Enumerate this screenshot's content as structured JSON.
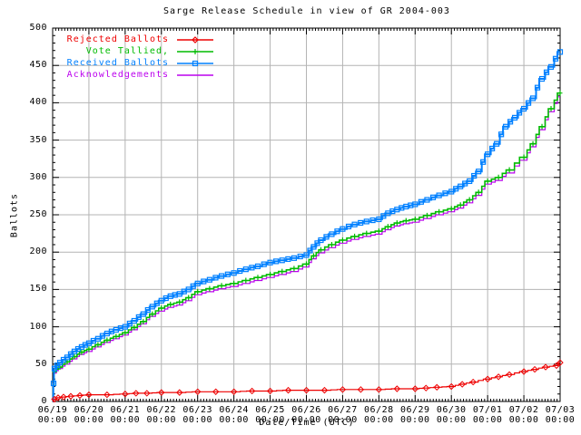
{
  "chart_data": {
    "type": "line",
    "title": "Sarge Release Schedule in view of GR 2004-003",
    "xlabel": "Date/Time (UTC)",
    "ylabel": "Ballots",
    "ylim": [
      0,
      500
    ],
    "y_tick_step": 50,
    "y_ticks": [
      0,
      50,
      100,
      150,
      200,
      250,
      300,
      350,
      400,
      450,
      500
    ],
    "x_tick_dates": [
      "06/19",
      "06/20",
      "06/21",
      "06/22",
      "06/23",
      "06/24",
      "06/25",
      "06/26",
      "06/27",
      "06/28",
      "06/29",
      "06/30",
      "07/01",
      "07/02",
      "07/03"
    ],
    "x_tick_time": "00:00",
    "grid": true,
    "legend_position": "top-left",
    "axis_color": "#000000",
    "grid_color": "#b4b4b4",
    "series": [
      {
        "name": "Rejected Ballots",
        "color": "#ee0000",
        "marker": "diamond",
        "points": [
          [
            0,
            0
          ],
          [
            0.05,
            3
          ],
          [
            0.15,
            5
          ],
          [
            0.3,
            6
          ],
          [
            0.5,
            7
          ],
          [
            0.75,
            8
          ],
          [
            1,
            9
          ],
          [
            1.5,
            9
          ],
          [
            2,
            10
          ],
          [
            2.3,
            11
          ],
          [
            2.6,
            11
          ],
          [
            3,
            12
          ],
          [
            3.5,
            12
          ],
          [
            4,
            13
          ],
          [
            4.5,
            13
          ],
          [
            5,
            13
          ],
          [
            5.5,
            14
          ],
          [
            6,
            14
          ],
          [
            6.5,
            15
          ],
          [
            7,
            15
          ],
          [
            7.5,
            15
          ],
          [
            8,
            16
          ],
          [
            8.5,
            16
          ],
          [
            9,
            16
          ],
          [
            9.5,
            17
          ],
          [
            10,
            17
          ],
          [
            10.3,
            18
          ],
          [
            10.6,
            19
          ],
          [
            11,
            20
          ],
          [
            11.3,
            23
          ],
          [
            11.6,
            26
          ],
          [
            12,
            30
          ],
          [
            12.3,
            33
          ],
          [
            12.6,
            36
          ],
          [
            13,
            40
          ],
          [
            13.3,
            43
          ],
          [
            13.6,
            46
          ],
          [
            13.9,
            48
          ],
          [
            14,
            52
          ]
        ]
      },
      {
        "name": "Vote Tallied,",
        "color": "#00bb00",
        "marker": "plus",
        "points": [
          [
            0,
            0
          ],
          [
            0.05,
            40
          ],
          [
            0.2,
            46
          ],
          [
            0.4,
            53
          ],
          [
            0.6,
            60
          ],
          [
            0.8,
            66
          ],
          [
            1,
            70
          ],
          [
            1.25,
            76
          ],
          [
            1.5,
            82
          ],
          [
            1.75,
            87
          ],
          [
            2,
            92
          ],
          [
            2.25,
            99
          ],
          [
            2.5,
            107
          ],
          [
            2.75,
            117
          ],
          [
            3,
            125
          ],
          [
            3.25,
            130
          ],
          [
            3.5,
            133
          ],
          [
            3.75,
            139
          ],
          [
            4,
            147
          ],
          [
            4.33,
            151
          ],
          [
            4.66,
            155
          ],
          [
            5,
            158
          ],
          [
            5.33,
            162
          ],
          [
            5.66,
            166
          ],
          [
            6,
            170
          ],
          [
            6.33,
            174
          ],
          [
            6.66,
            178
          ],
          [
            7,
            184
          ],
          [
            7.2,
            195
          ],
          [
            7.4,
            203
          ],
          [
            7.7,
            210
          ],
          [
            8,
            216
          ],
          [
            8.33,
            221
          ],
          [
            8.66,
            225
          ],
          [
            9,
            228
          ],
          [
            9.25,
            234
          ],
          [
            9.5,
            239
          ],
          [
            9.75,
            242
          ],
          [
            10,
            244
          ],
          [
            10.33,
            249
          ],
          [
            10.66,
            254
          ],
          [
            11,
            258
          ],
          [
            11.25,
            263
          ],
          [
            11.5,
            270
          ],
          [
            11.75,
            280
          ],
          [
            12,
            295
          ],
          [
            12.3,
            300
          ],
          [
            12.6,
            310
          ],
          [
            13,
            327
          ],
          [
            13.25,
            345
          ],
          [
            13.5,
            368
          ],
          [
            13.75,
            392
          ],
          [
            14,
            413
          ]
        ]
      },
      {
        "name": "Received Ballots",
        "color": "#0080ff",
        "marker": "square",
        "points": [
          [
            0,
            0
          ],
          [
            0.05,
            44
          ],
          [
            0.2,
            52
          ],
          [
            0.4,
            59
          ],
          [
            0.6,
            67
          ],
          [
            0.8,
            73
          ],
          [
            1,
            78
          ],
          [
            1.25,
            84
          ],
          [
            1.5,
            91
          ],
          [
            1.75,
            96
          ],
          [
            2,
            100
          ],
          [
            2.25,
            108
          ],
          [
            2.5,
            117
          ],
          [
            2.75,
            127
          ],
          [
            3,
            135
          ],
          [
            3.25,
            141
          ],
          [
            3.5,
            144
          ],
          [
            3.75,
            150
          ],
          [
            4,
            158
          ],
          [
            4.33,
            163
          ],
          [
            4.66,
            168
          ],
          [
            5,
            172
          ],
          [
            5.33,
            177
          ],
          [
            5.66,
            181
          ],
          [
            6,
            186
          ],
          [
            6.33,
            189
          ],
          [
            6.66,
            192
          ],
          [
            7,
            196
          ],
          [
            7.2,
            207
          ],
          [
            7.4,
            216
          ],
          [
            7.7,
            224
          ],
          [
            8,
            231
          ],
          [
            8.33,
            237
          ],
          [
            8.66,
            241
          ],
          [
            9,
            244
          ],
          [
            9.25,
            252
          ],
          [
            9.5,
            257
          ],
          [
            9.75,
            261
          ],
          [
            10,
            264
          ],
          [
            10.33,
            270
          ],
          [
            10.66,
            276
          ],
          [
            11,
            281
          ],
          [
            11.25,
            288
          ],
          [
            11.5,
            295
          ],
          [
            11.75,
            308
          ],
          [
            12,
            331
          ],
          [
            12.25,
            345
          ],
          [
            12.5,
            368
          ],
          [
            12.75,
            380
          ],
          [
            13,
            392
          ],
          [
            13.25,
            406
          ],
          [
            13.5,
            432
          ],
          [
            13.75,
            448
          ],
          [
            14,
            468
          ]
        ]
      },
      {
        "name": "Acknowledgements",
        "color": "#bb00ee",
        "marker": "none",
        "points": [
          [
            0,
            0
          ],
          [
            0.05,
            38
          ],
          [
            0.2,
            44
          ],
          [
            0.4,
            50
          ],
          [
            0.6,
            57
          ],
          [
            0.8,
            63
          ],
          [
            1,
            67
          ],
          [
            1.25,
            73
          ],
          [
            1.5,
            79
          ],
          [
            1.75,
            84
          ],
          [
            2,
            89
          ],
          [
            2.25,
            96
          ],
          [
            2.5,
            104
          ],
          [
            2.75,
            114
          ],
          [
            3,
            121
          ],
          [
            3.25,
            126
          ],
          [
            3.5,
            129
          ],
          [
            3.75,
            135
          ],
          [
            4,
            143
          ],
          [
            4.33,
            147
          ],
          [
            4.66,
            151
          ],
          [
            5,
            154
          ],
          [
            5.33,
            158
          ],
          [
            5.66,
            162
          ],
          [
            6,
            166
          ],
          [
            6.33,
            170
          ],
          [
            6.66,
            174
          ],
          [
            7,
            180
          ],
          [
            7.2,
            191
          ],
          [
            7.4,
            199
          ],
          [
            7.7,
            206
          ],
          [
            8,
            212
          ],
          [
            8.33,
            217
          ],
          [
            8.66,
            221
          ],
          [
            9,
            224
          ],
          [
            9.25,
            230
          ],
          [
            9.5,
            235
          ],
          [
            9.75,
            238
          ],
          [
            10,
            240
          ],
          [
            10.33,
            245
          ],
          [
            10.66,
            250
          ],
          [
            11,
            254
          ],
          [
            11.25,
            259
          ],
          [
            11.5,
            266
          ],
          [
            11.75,
            276
          ],
          [
            12,
            291
          ],
          [
            12.3,
            296
          ],
          [
            12.6,
            306
          ],
          [
            13,
            323
          ],
          [
            13.25,
            341
          ],
          [
            13.5,
            364
          ],
          [
            13.75,
            388
          ],
          [
            14,
            408
          ]
        ]
      }
    ]
  }
}
